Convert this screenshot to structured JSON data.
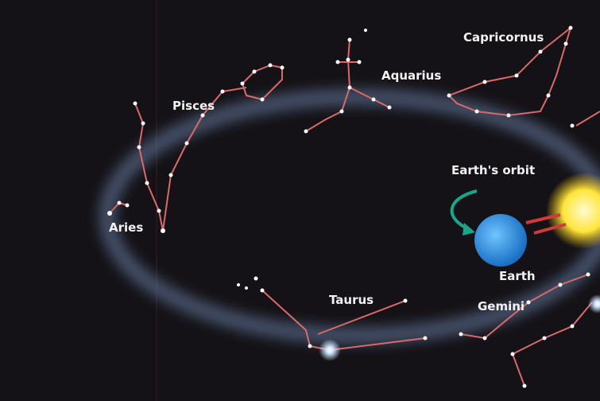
{
  "labels": {
    "capricornus": "Capricornus",
    "aquarius": "Aquarius",
    "pisces": "Pisces",
    "aries": "Aries",
    "orbit": "Earth's orbit",
    "earth": "Earth",
    "taurus": "Taurus",
    "gemini": "Gemini"
  }
}
